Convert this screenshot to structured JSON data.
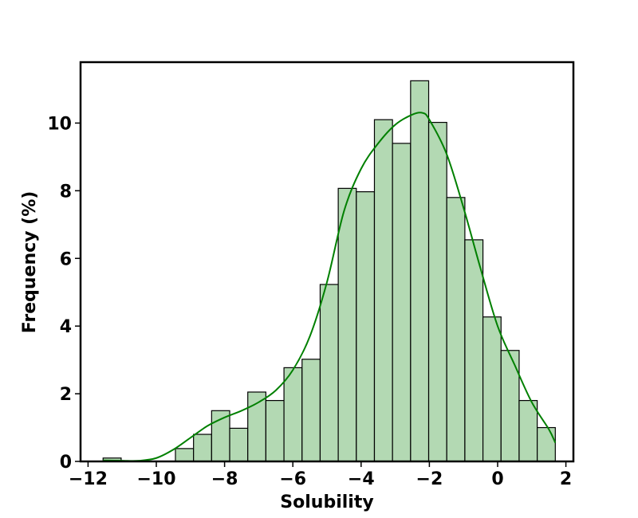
{
  "chart_data": {
    "type": "bar",
    "title": "",
    "xlabel": "Solubility",
    "ylabel": "Frequency (%)",
    "xlim": [
      -12.22,
      2.22
    ],
    "ylim": [
      0,
      11.8
    ],
    "xticks": [
      -12,
      -10,
      -8,
      -6,
      -4,
      -2,
      0,
      2
    ],
    "xtick_labels": [
      "−12",
      "−10",
      "−8",
      "−6",
      "−4",
      "−2",
      "0",
      "2"
    ],
    "yticks": [
      0,
      2,
      4,
      6,
      8,
      10
    ],
    "ytick_labels": [
      "0",
      "2",
      "4",
      "6",
      "8",
      "10"
    ],
    "grid": false,
    "legend": "none",
    "colors": {
      "bar_fill": "#b3d9b3",
      "bar_edge": "#000000",
      "kde_line": "#008000"
    },
    "bins": [
      {
        "x0": -11.56,
        "x1": -11.03,
        "value": 0.1
      },
      {
        "x0": -11.03,
        "x1": -10.5,
        "value": 0
      },
      {
        "x0": -10.5,
        "x1": -9.97,
        "value": 0
      },
      {
        "x0": -9.97,
        "x1": -9.44,
        "value": 0
      },
      {
        "x0": -9.44,
        "x1": -8.91,
        "value": 0.38
      },
      {
        "x0": -8.91,
        "x1": -8.38,
        "value": 0.8
      },
      {
        "x0": -8.38,
        "x1": -7.85,
        "value": 1.5
      },
      {
        "x0": -7.85,
        "x1": -7.32,
        "value": 0.98
      },
      {
        "x0": -7.32,
        "x1": -6.79,
        "value": 2.05
      },
      {
        "x0": -6.79,
        "x1": -6.26,
        "value": 1.8
      },
      {
        "x0": -6.26,
        "x1": -5.73,
        "value": 2.77
      },
      {
        "x0": -5.73,
        "x1": -5.2,
        "value": 3.02
      },
      {
        "x0": -5.2,
        "x1": -4.67,
        "value": 5.23
      },
      {
        "x0": -4.67,
        "x1": -4.14,
        "value": 8.07
      },
      {
        "x0": -4.14,
        "x1": -3.61,
        "value": 7.97
      },
      {
        "x0": -3.61,
        "x1": -3.08,
        "value": 10.1
      },
      {
        "x0": -3.08,
        "x1": -2.55,
        "value": 9.4
      },
      {
        "x0": -2.55,
        "x1": -2.02,
        "value": 11.25
      },
      {
        "x0": -2.02,
        "x1": -1.49,
        "value": 10.02
      },
      {
        "x0": -1.49,
        "x1": -0.96,
        "value": 7.8
      },
      {
        "x0": -0.96,
        "x1": -0.43,
        "value": 6.55
      },
      {
        "x0": -0.43,
        "x1": 0.1,
        "value": 4.27
      },
      {
        "x0": 0.1,
        "x1": 0.63,
        "value": 3.28
      },
      {
        "x0": 0.63,
        "x1": 1.16,
        "value": 1.8
      },
      {
        "x0": 1.16,
        "x1": 1.69,
        "value": 1.0
      }
    ],
    "kde": {
      "x": [
        -11.56,
        -11.0,
        -10.5,
        -10.0,
        -9.5,
        -9.0,
        -8.5,
        -8.0,
        -7.5,
        -7.0,
        -6.5,
        -6.0,
        -5.5,
        -5.0,
        -4.5,
        -4.0,
        -3.5,
        -3.0,
        -2.5,
        -2.2,
        -2.0,
        -1.5,
        -1.0,
        -0.5,
        0.0,
        0.5,
        1.0,
        1.5,
        1.69
      ],
      "y": [
        0.03,
        0.02,
        0.02,
        0.1,
        0.35,
        0.7,
        1.05,
        1.3,
        1.5,
        1.75,
        2.1,
        2.7,
        3.7,
        5.3,
        7.4,
        8.65,
        9.4,
        9.95,
        10.25,
        10.3,
        10.1,
        9.1,
        7.5,
        5.7,
        4.0,
        2.85,
        1.75,
        0.95,
        0.55
      ]
    }
  }
}
